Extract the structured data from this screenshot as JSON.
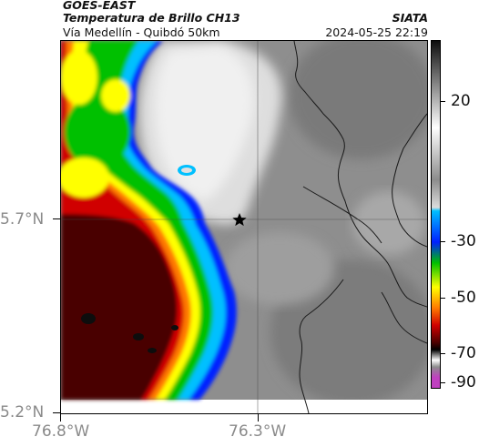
{
  "header": {
    "source": "GOES-EAST",
    "product": "Temperatura de Brillo CH13",
    "region": "Vía Medellín - Quibdó 50km",
    "organization": "SIATA",
    "datetime": "2024-05-25 22:19"
  },
  "axes": {
    "lat_ticks": [
      "5.7°N",
      "5.2°N"
    ],
    "lon_ticks": [
      "76.8°W",
      "76.3°W"
    ]
  },
  "colorbar": {
    "labels": [
      "20",
      "-30",
      "-50",
      "-70",
      "-90"
    ],
    "colors": {
      "black": "#0d0d0d",
      "dark_red": "#4a0000",
      "red": "#d00000",
      "orange": "#ff7a00",
      "yellow": "#ffff00",
      "green": "#00c000",
      "blue": "#0020ff",
      "cyan": "#00c0ff",
      "grey": "#8c8c8c",
      "white": "#fafafa",
      "magenta": "#c040c0"
    }
  },
  "map": {
    "marker": "star-icon",
    "gridlines": true
  }
}
